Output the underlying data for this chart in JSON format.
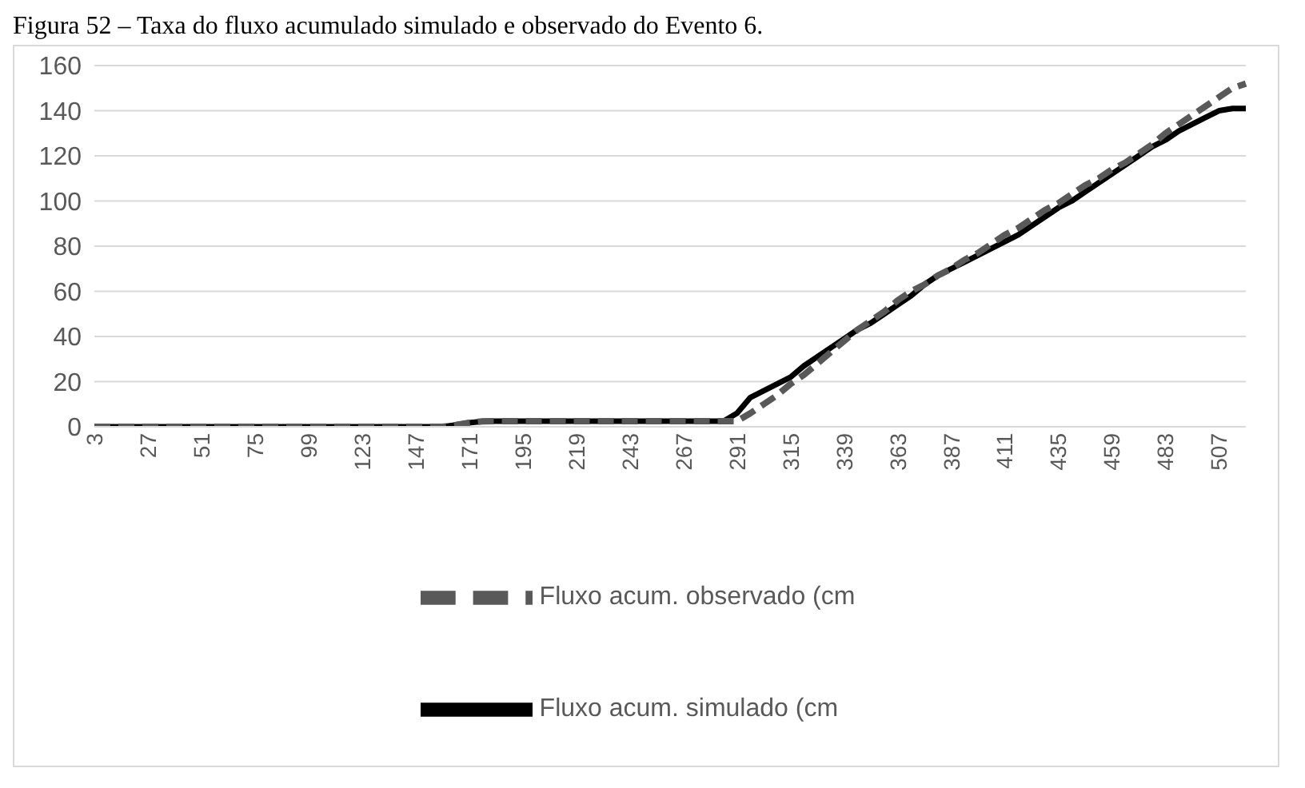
{
  "chart_data": {
    "type": "line",
    "title": "Figura 52 – Taxa do fluxo acumulado simulado e observado do Evento 6.",
    "categories": [
      "3",
      null,
      null,
      null,
      "27",
      null,
      null,
      null,
      "51",
      null,
      null,
      null,
      "75",
      null,
      null,
      null,
      "99",
      null,
      null,
      null,
      "123",
      null,
      null,
      null,
      "147",
      null,
      null,
      null,
      "171",
      null,
      null,
      null,
      "195",
      null,
      null,
      null,
      "219",
      null,
      null,
      null,
      "243",
      null,
      null,
      null,
      "267",
      null,
      null,
      null,
      "291",
      null,
      null,
      null,
      "315",
      null,
      null,
      null,
      "339",
      null,
      null,
      null,
      "363",
      null,
      null,
      null,
      "387",
      null,
      null,
      null,
      "411",
      null,
      null,
      null,
      "435",
      null,
      null,
      null,
      "459",
      null,
      null,
      null,
      "483",
      null,
      null,
      null,
      "507",
      null,
      null
    ],
    "series": [
      {
        "name": "Fluxo acum. simulado (cm",
        "color": "#000000",
        "line_style": "solid",
        "values": [
          0,
          0,
          0,
          0,
          0,
          0,
          0,
          0,
          0,
          0,
          0,
          0,
          0,
          0,
          0,
          0,
          0,
          0,
          0,
          0,
          0,
          0,
          0,
          0,
          0,
          0,
          0,
          0.8,
          1.8,
          2.4,
          2.5,
          2.5,
          2.5,
          2.5,
          2.5,
          2.5,
          2.5,
          2.5,
          2.5,
          2.5,
          2.5,
          2.5,
          2.5,
          2.5,
          2.5,
          2.5,
          2.5,
          2.5,
          6,
          13,
          16,
          19,
          22,
          27,
          31,
          35,
          39,
          43,
          46,
          50,
          54,
          58,
          63,
          67,
          70,
          73,
          76,
          79,
          82,
          85,
          89,
          93,
          97,
          100,
          104,
          108,
          112,
          116,
          120,
          124,
          127,
          131,
          134,
          137,
          140,
          141,
          141
        ]
      },
      {
        "name": "Fluxo acum. observado (cm",
        "color": "#595959",
        "line_style": "dashed",
        "values": [
          0,
          0,
          0,
          0,
          0,
          0,
          0,
          0,
          0,
          0,
          0,
          0,
          0,
          0,
          0,
          0,
          0,
          0,
          0,
          0,
          0,
          0,
          0,
          0,
          0,
          0,
          0,
          0.8,
          1.8,
          2.4,
          2.5,
          2.5,
          2.5,
          2.5,
          2.5,
          2.5,
          2.5,
          2.5,
          2.5,
          2.5,
          2.5,
          2.5,
          2.5,
          2.5,
          2.5,
          2.5,
          2.5,
          2.5,
          2.5,
          6,
          10,
          14,
          19,
          23,
          28,
          33,
          38,
          43,
          47,
          51,
          56,
          60,
          63,
          67,
          70,
          74,
          77,
          81,
          85,
          88,
          92,
          96,
          99,
          103,
          107,
          110,
          114,
          117,
          121,
          125,
          130,
          134,
          138,
          142,
          146,
          150,
          152
        ]
      }
    ],
    "ylim": [
      0,
      160
    ],
    "yticks": [
      0,
      20,
      40,
      60,
      80,
      100,
      120,
      140,
      160
    ],
    "grid": "y",
    "legend": "bottom",
    "marker": "none"
  }
}
